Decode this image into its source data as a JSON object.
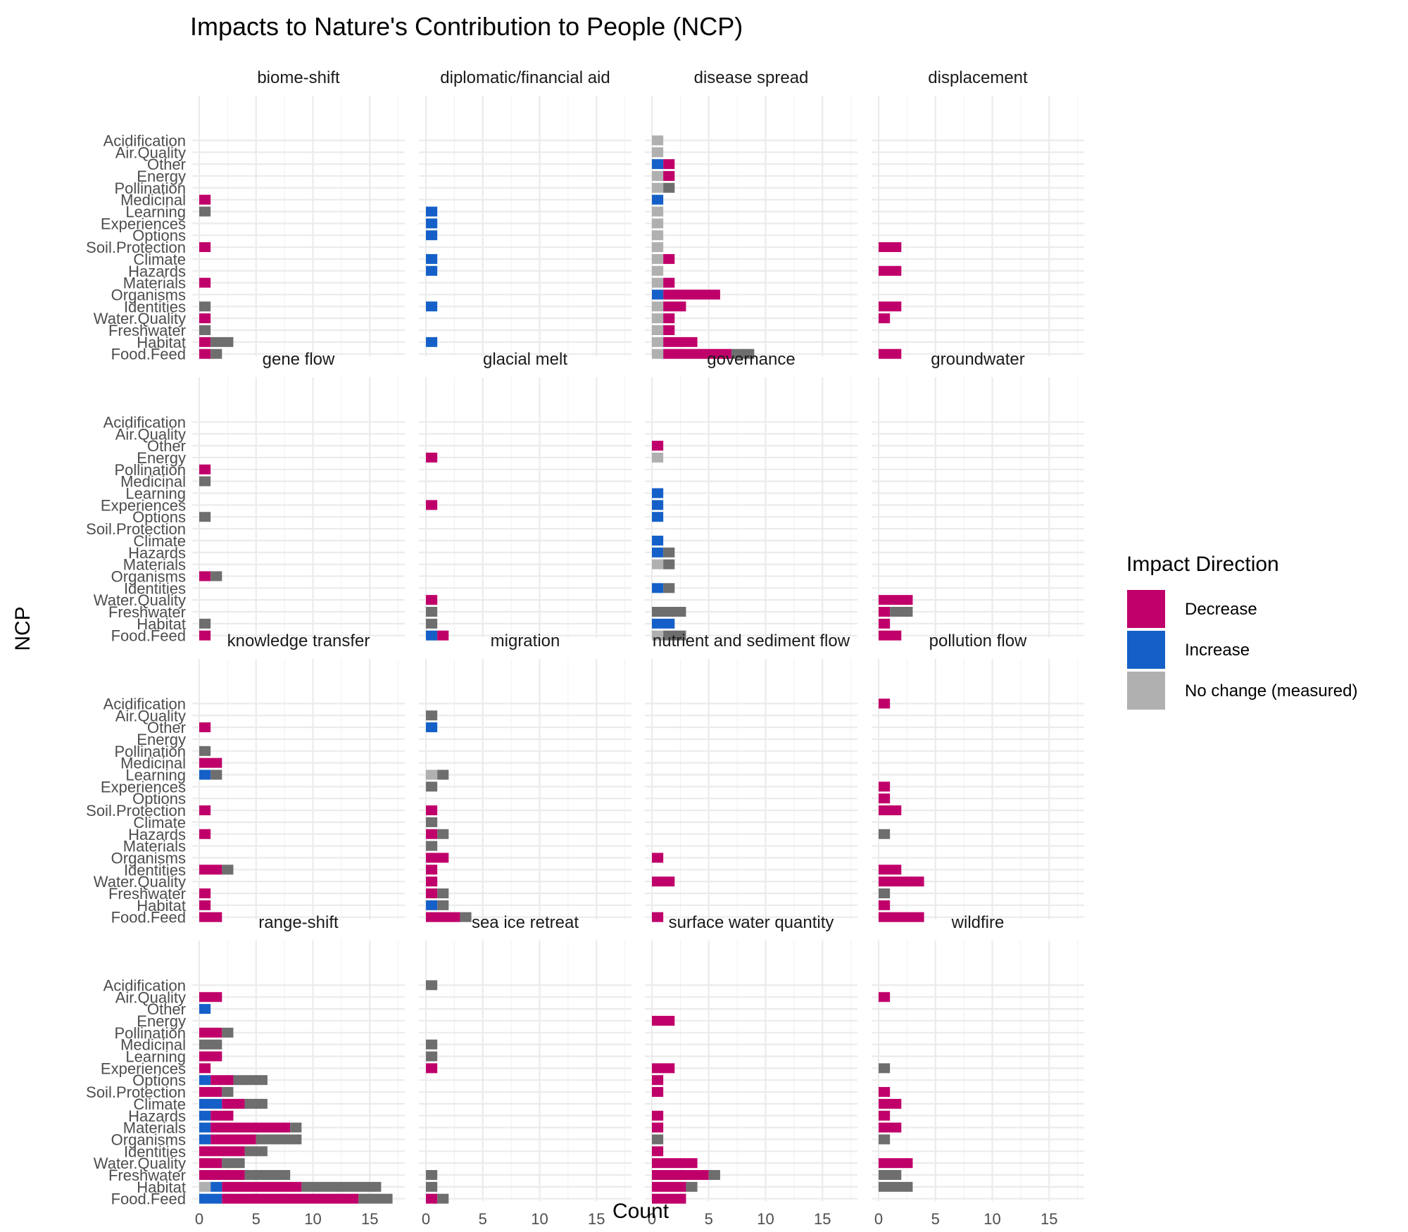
{
  "title": "Impacts to Nature's Contribution to People (NCP)",
  "colors": {
    "Decrease": "#c0006a",
    "Increase": "#1560c8",
    "No change (measured)": "#b0b0b0",
    "Other": "#6e6e6e"
  },
  "chart_data": {
    "type": "bar",
    "orientation": "horizontal",
    "stacked": true,
    "title": "Impacts to Nature's Contribution to People (NCP)",
    "xlabel": "Count",
    "ylabel": "NCP",
    "xlim": [
      0,
      17.5
    ],
    "x_ticks": [
      0,
      5,
      10,
      15
    ],
    "grid": true,
    "legend": {
      "title": "Impact Direction",
      "placement": "right",
      "entries": [
        "Decrease",
        "Increase",
        "No change (measured)"
      ]
    },
    "categories": [
      "Food.Feed",
      "Habitat",
      "Freshwater",
      "Water.Quality",
      "Identities",
      "Organisms",
      "Materials",
      "Hazards",
      "Climate",
      "Soil.Protection",
      "Options",
      "Experiences",
      "Learning",
      "Medicinal",
      "Pollination",
      "Energy",
      "Other",
      "Air.Quality",
      "Acidification"
    ],
    "stack_order": [
      "No change (measured)",
      "Increase",
      "Decrease",
      "Other"
    ],
    "panels": [
      {
        "name": "biome-shift",
        "bars": {
          "Habitat": {
            "Decrease": 1,
            "Other": 2
          },
          "Food.Feed": {
            "Decrease": 1,
            "Other": 1
          },
          "Freshwater": {
            "Other": 1
          },
          "Water.Quality": {
            "Decrease": 1
          },
          "Identities": {
            "Other": 1
          },
          "Materials": {
            "Decrease": 1
          },
          "Soil.Protection": {
            "Decrease": 1
          },
          "Learning": {
            "Other": 1
          },
          "Medicinal": {
            "Decrease": 1
          }
        }
      },
      {
        "name": "diplomatic/financial aid",
        "bars": {
          "Habitat": {
            "Increase": 1
          },
          "Identities": {
            "Increase": 1
          },
          "Hazards": {
            "Increase": 1
          },
          "Climate": {
            "Increase": 1
          },
          "Options": {
            "Increase": 1
          },
          "Experiences": {
            "Increase": 1
          },
          "Learning": {
            "Increase": 1
          }
        }
      },
      {
        "name": "disease spread",
        "bars": {
          "Food.Feed": {
            "No change (measured)": 1,
            "Decrease": 6,
            "Other": 2
          },
          "Habitat": {
            "No change (measured)": 1,
            "Decrease": 3
          },
          "Freshwater": {
            "No change (measured)": 1,
            "Decrease": 1
          },
          "Water.Quality": {
            "No change (measured)": 1,
            "Decrease": 1
          },
          "Identities": {
            "No change (measured)": 1,
            "Decrease": 2
          },
          "Organisms": {
            "Increase": 1,
            "Decrease": 5
          },
          "Materials": {
            "No change (measured)": 1,
            "Decrease": 1
          },
          "Hazards": {
            "No change (measured)": 1
          },
          "Climate": {
            "No change (measured)": 1,
            "Decrease": 1
          },
          "Soil.Protection": {
            "No change (measured)": 1
          },
          "Options": {
            "No change (measured)": 1
          },
          "Experiences": {
            "No change (measured)": 1
          },
          "Learning": {
            "No change (measured)": 1
          },
          "Medicinal": {
            "Increase": 1
          },
          "Pollination": {
            "No change (measured)": 1,
            "Other": 1
          },
          "Energy": {
            "No change (measured)": 1,
            "Decrease": 1
          },
          "Other": {
            "Increase": 1,
            "Decrease": 1
          },
          "Air.Quality": {
            "No change (measured)": 1
          },
          "Acidification": {
            "No change (measured)": 1
          }
        }
      },
      {
        "name": "displacement",
        "bars": {
          "Food.Feed": {
            "Decrease": 2
          },
          "Water.Quality": {
            "Decrease": 1
          },
          "Identities": {
            "Decrease": 2
          },
          "Hazards": {
            "Decrease": 2
          },
          "Soil.Protection": {
            "Decrease": 2
          }
        }
      },
      {
        "name": "gene flow",
        "bars": {
          "Food.Feed": {
            "Decrease": 1
          },
          "Habitat": {
            "Other": 1
          },
          "Organisms": {
            "Decrease": 1,
            "Other": 1
          },
          "Options": {
            "Other": 1
          },
          "Medicinal": {
            "Other": 1
          },
          "Pollination": {
            "Decrease": 1
          }
        }
      },
      {
        "name": "glacial melt",
        "bars": {
          "Food.Feed": {
            "Increase": 1,
            "Decrease": 1
          },
          "Habitat": {
            "Other": 1
          },
          "Freshwater": {
            "Other": 1
          },
          "Water.Quality": {
            "Decrease": 1
          },
          "Experiences": {
            "Decrease": 1
          },
          "Energy": {
            "Decrease": 1
          }
        }
      },
      {
        "name": "governance",
        "bars": {
          "Food.Feed": {
            "No change (measured)": 1,
            "Other": 2
          },
          "Habitat": {
            "Increase": 2
          },
          "Freshwater": {
            "Other": 3
          },
          "Identities": {
            "Increase": 1,
            "Other": 1
          },
          "Materials": {
            "No change (measured)": 1,
            "Other": 1
          },
          "Hazards": {
            "Increase": 1,
            "Other": 1
          },
          "Climate": {
            "Increase": 1
          },
          "Options": {
            "Increase": 1
          },
          "Experiences": {
            "Increase": 1
          },
          "Learning": {
            "Increase": 1
          },
          "Energy": {
            "No change (measured)": 1
          },
          "Other": {
            "Decrease": 1
          }
        }
      },
      {
        "name": "groundwater",
        "bars": {
          "Food.Feed": {
            "Decrease": 2
          },
          "Habitat": {
            "Decrease": 1
          },
          "Freshwater": {
            "Decrease": 1,
            "Other": 2
          },
          "Water.Quality": {
            "Decrease": 3
          }
        }
      },
      {
        "name": "knowledge transfer",
        "bars": {
          "Food.Feed": {
            "Decrease": 2
          },
          "Habitat": {
            "Decrease": 1
          },
          "Freshwater": {
            "Decrease": 1
          },
          "Identities": {
            "Decrease": 2,
            "Other": 1
          },
          "Hazards": {
            "Decrease": 1
          },
          "Soil.Protection": {
            "Decrease": 1
          },
          "Learning": {
            "Increase": 1,
            "Other": 1
          },
          "Medicinal": {
            "Decrease": 2
          },
          "Pollination": {
            "Other": 1
          },
          "Other": {
            "Decrease": 1
          }
        }
      },
      {
        "name": "migration",
        "bars": {
          "Food.Feed": {
            "Decrease": 3,
            "Other": 1
          },
          "Habitat": {
            "Increase": 1,
            "Other": 1
          },
          "Freshwater": {
            "Decrease": 1,
            "Other": 1
          },
          "Water.Quality": {
            "Decrease": 1
          },
          "Identities": {
            "Decrease": 1
          },
          "Organisms": {
            "Decrease": 2
          },
          "Materials": {
            "Other": 1
          },
          "Hazards": {
            "Decrease": 1,
            "Other": 1
          },
          "Climate": {
            "Other": 1
          },
          "Soil.Protection": {
            "Decrease": 1
          },
          "Experiences": {
            "Other": 1
          },
          "Learning": {
            "No change (measured)": 1,
            "Other": 1
          },
          "Other": {
            "Increase": 1
          },
          "Air.Quality": {
            "Other": 1
          }
        }
      },
      {
        "name": "nutrient and sediment flow",
        "bars": {
          "Food.Feed": {
            "Decrease": 1
          },
          "Water.Quality": {
            "Decrease": 2
          },
          "Organisms": {
            "Decrease": 1
          }
        }
      },
      {
        "name": "pollution flow",
        "bars": {
          "Food.Feed": {
            "Decrease": 4
          },
          "Habitat": {
            "Decrease": 1
          },
          "Freshwater": {
            "Other": 1
          },
          "Water.Quality": {
            "Decrease": 4
          },
          "Identities": {
            "Decrease": 2
          },
          "Hazards": {
            "Other": 1
          },
          "Soil.Protection": {
            "Decrease": 2
          },
          "Options": {
            "Decrease": 1
          },
          "Experiences": {
            "Decrease": 1
          },
          "Acidification": {
            "Decrease": 1
          }
        }
      },
      {
        "name": "range-shift",
        "bars": {
          "Food.Feed": {
            "Increase": 2,
            "Decrease": 12,
            "Other": 3
          },
          "Habitat": {
            "No change (measured)": 1,
            "Increase": 1,
            "Decrease": 7,
            "Other": 7
          },
          "Freshwater": {
            "Decrease": 4,
            "Other": 4
          },
          "Water.Quality": {
            "Decrease": 2,
            "Other": 2
          },
          "Identities": {
            "Decrease": 4,
            "Other": 2
          },
          "Organisms": {
            "Increase": 1,
            "Decrease": 4,
            "Other": 4
          },
          "Materials": {
            "Increase": 1,
            "Decrease": 7,
            "Other": 1
          },
          "Hazards": {
            "Increase": 1,
            "Decrease": 2
          },
          "Climate": {
            "Increase": 2,
            "Decrease": 2,
            "Other": 2
          },
          "Soil.Protection": {
            "Decrease": 2,
            "Other": 1
          },
          "Options": {
            "Increase": 1,
            "Decrease": 2,
            "Other": 3
          },
          "Experiences": {
            "Decrease": 1
          },
          "Learning": {
            "Decrease": 2
          },
          "Medicinal": {
            "Other": 2
          },
          "Pollination": {
            "Decrease": 2,
            "Other": 1
          },
          "Other": {
            "Increase": 1
          },
          "Air.Quality": {
            "Decrease": 2
          }
        }
      },
      {
        "name": "sea ice retreat",
        "bars": {
          "Food.Feed": {
            "Decrease": 1,
            "Other": 1
          },
          "Habitat": {
            "Other": 1
          },
          "Freshwater": {
            "Other": 1
          },
          "Experiences": {
            "Decrease": 1
          },
          "Learning": {
            "Other": 1
          },
          "Medicinal": {
            "Other": 1
          },
          "Acidification": {
            "Other": 1
          }
        }
      },
      {
        "name": "surface water quantity",
        "bars": {
          "Food.Feed": {
            "Decrease": 3
          },
          "Habitat": {
            "Decrease": 3,
            "Other": 1
          },
          "Freshwater": {
            "Decrease": 5,
            "Other": 1
          },
          "Water.Quality": {
            "Decrease": 4
          },
          "Identities": {
            "Decrease": 1
          },
          "Organisms": {
            "Other": 1
          },
          "Materials": {
            "Decrease": 1
          },
          "Hazards": {
            "Decrease": 1
          },
          "Soil.Protection": {
            "Decrease": 1
          },
          "Options": {
            "Decrease": 1
          },
          "Experiences": {
            "Decrease": 2
          },
          "Energy": {
            "Decrease": 2
          }
        }
      },
      {
        "name": "wildfire",
        "bars": {
          "Habitat": {
            "Other": 3
          },
          "Freshwater": {
            "Other": 2
          },
          "Water.Quality": {
            "Decrease": 3
          },
          "Organisms": {
            "Other": 1
          },
          "Materials": {
            "Decrease": 2
          },
          "Hazards": {
            "Decrease": 1
          },
          "Climate": {
            "Decrease": 2
          },
          "Soil.Protection": {
            "Decrease": 1
          },
          "Experiences": {
            "Other": 1
          },
          "Air.Quality": {
            "Decrease": 1
          }
        }
      }
    ]
  }
}
